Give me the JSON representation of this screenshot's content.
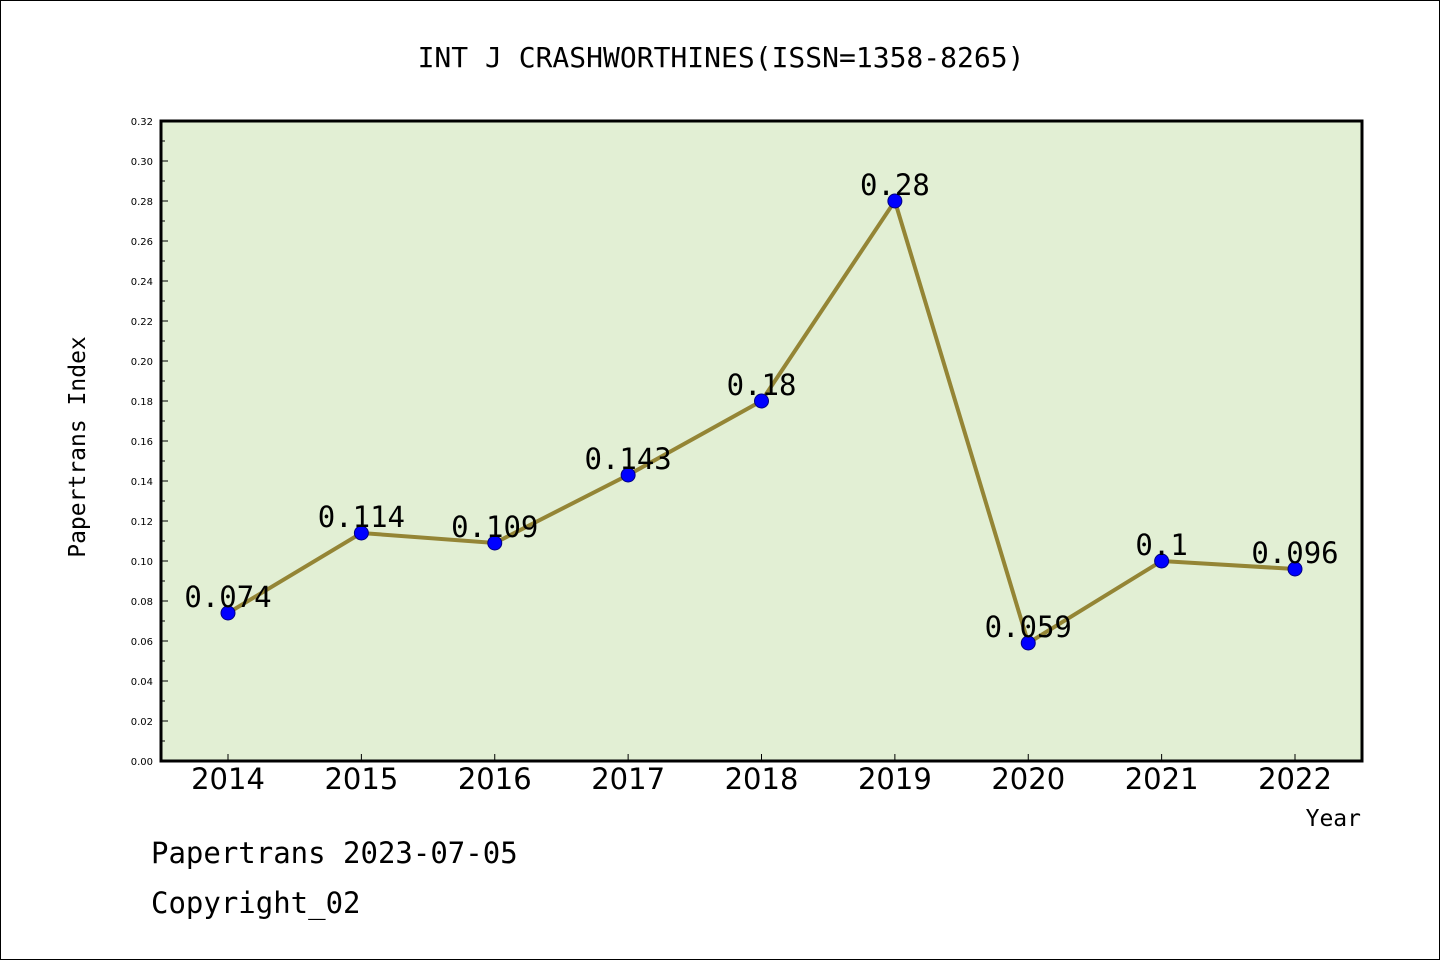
{
  "footer": {
    "line1": "Papertrans 2023-07-05",
    "line2": "Copyright_02"
  },
  "chart_data": {
    "type": "line",
    "title": "INT J CRASHWORTHINES(ISSN=1358-8265)",
    "xlabel": "Year",
    "ylabel": "Papertrans Index",
    "categories": [
      "2014",
      "2015",
      "2016",
      "2017",
      "2018",
      "2019",
      "2020",
      "2021",
      "2022"
    ],
    "series": [
      {
        "values": [
          0.074,
          0.114,
          0.109,
          0.143,
          0.18,
          0.28,
          0.059,
          0.1,
          0.096
        ],
        "labels": [
          "0.074",
          "0.114",
          "0.109",
          "0.143",
          "0.18",
          "0.28",
          "0.059",
          "0.1",
          "0.096"
        ]
      }
    ],
    "ylim": [
      0,
      0.32
    ],
    "yticks": [
      "0.00",
      "0.02",
      "0.04",
      "0.06",
      "0.08",
      "0.10",
      "0.12",
      "0.14",
      "0.16",
      "0.18",
      "0.20",
      "0.22",
      "0.24",
      "0.26",
      "0.28",
      "0.30",
      "0.32"
    ],
    "grid": false,
    "legend": "none",
    "colors": {
      "plot_background": "#e2efd4",
      "line": "#948535",
      "marker": "#0000ff",
      "marker_edge": "#000080"
    }
  }
}
